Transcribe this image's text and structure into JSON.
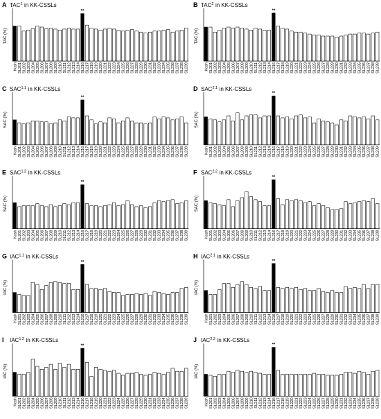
{
  "chart_data": [
    {
      "type": "bar",
      "panel_label": "A",
      "title": "TAC",
      "title_sup": "1",
      "title_suffix": "in KK-CSSLs",
      "ylabel": "TAC (%)",
      "annotation": "**",
      "annotation_index": 15,
      "color": "#ffffff",
      "highlight": [
        0,
        15
      ],
      "highlight_color": "#000000",
      "ylim": [
        0,
        100
      ],
      "categories": [
        "Kosh",
        "SL201",
        "SL202",
        "SL203",
        "SL204",
        "SL205",
        "SL206",
        "SL207",
        "SL208",
        "SL209",
        "SL210",
        "SL211",
        "SL212",
        "SL213",
        "SL214",
        "SL216",
        "SL217",
        "SL218",
        "SL219",
        "SL220",
        "SL221",
        "SL222",
        "SL223",
        "SL224",
        "SL225",
        "SL226",
        "SL227",
        "SL228",
        "SL229",
        "SL230",
        "SL231",
        "SL232",
        "SL233",
        "SL234",
        "SL235",
        "SL236",
        "SL237",
        "SL238",
        "SL239"
      ],
      "values": [
        70,
        70,
        60,
        62,
        65,
        70,
        68,
        65,
        66,
        64,
        62,
        64,
        66,
        64,
        64,
        95,
        72,
        66,
        64,
        62,
        64,
        66,
        64,
        62,
        60,
        62,
        63,
        60,
        58,
        56,
        58,
        60,
        60,
        62,
        63,
        58,
        60,
        62,
        66
      ]
    },
    {
      "type": "bar",
      "panel_label": "B",
      "title": "TAC",
      "title_sup": "2",
      "title_suffix": "in KK-CSSLs",
      "ylabel": "TAC (%)",
      "annotation": "**",
      "annotation_index": 15,
      "color": "#ffffff",
      "highlight": [
        0,
        15
      ],
      "highlight_color": "#000000",
      "ylim": [
        0,
        100
      ],
      "categories": [
        "Kosh",
        "SL201",
        "SL202",
        "SL203",
        "SL204",
        "SL205",
        "SL206",
        "SL207",
        "SL208",
        "SL209",
        "SL210",
        "SL211",
        "SL212",
        "SL213",
        "SL214",
        "SL216",
        "SL217",
        "SL218",
        "SL219",
        "SL220",
        "SL221",
        "SL222",
        "SL223",
        "SL224",
        "SL225",
        "SL226",
        "SL227",
        "SL228",
        "SL229",
        "SL230",
        "SL231",
        "SL232",
        "SL233",
        "SL234",
        "SL235",
        "SL236",
        "SL237",
        "SL238",
        "SL239"
      ],
      "values": [
        68,
        68,
        58,
        62,
        66,
        68,
        66,
        68,
        66,
        64,
        62,
        66,
        64,
        62,
        62,
        96,
        70,
        66,
        64,
        60,
        58,
        58,
        56,
        54,
        52,
        52,
        50,
        50,
        50,
        48,
        50,
        52,
        54,
        54,
        56,
        56,
        54,
        56,
        58
      ]
    },
    {
      "type": "bar",
      "panel_label": "C",
      "title": "SAC",
      "title_sup": "1.1",
      "title_suffix": "in KK-CSSLs",
      "ylabel": "SAC (%)",
      "annotation": "**",
      "annotation_index": 15,
      "color": "#ffffff",
      "highlight": [
        0,
        15
      ],
      "highlight_color": "#000000",
      "ylim": [
        0,
        100
      ],
      "categories": [
        "Kosh",
        "SL201",
        "SL202",
        "SL203",
        "SL204",
        "SL205",
        "SL206",
        "SL207",
        "SL208",
        "SL209",
        "SL210",
        "SL211",
        "SL212",
        "SL213",
        "SL214",
        "SL216",
        "SL217",
        "SL218",
        "SL219",
        "SL220",
        "SL221",
        "SL222",
        "SL223",
        "SL224",
        "SL225",
        "SL226",
        "SL227",
        "SL228",
        "SL229",
        "SL230",
        "SL231",
        "SL232",
        "SL233",
        "SL234",
        "SL235",
        "SL236",
        "SL237",
        "SL238",
        "SL239"
      ],
      "values": [
        50,
        44,
        42,
        44,
        48,
        48,
        46,
        46,
        42,
        44,
        50,
        48,
        56,
        54,
        54,
        90,
        58,
        50,
        42,
        46,
        44,
        54,
        52,
        44,
        48,
        54,
        48,
        44,
        44,
        42,
        44,
        56,
        52,
        56,
        54,
        50,
        52,
        56,
        44
      ]
    },
    {
      "type": "bar",
      "panel_label": "D",
      "title": "SAC",
      "title_sup": "2.1",
      "title_suffix": "in KK-CSSLs",
      "ylabel": "SAC (%)",
      "annotation": "**",
      "annotation_index": 15,
      "color": "#ffffff",
      "highlight": [
        0,
        15
      ],
      "highlight_color": "#000000",
      "ylim": [
        0,
        100
      ],
      "categories": [
        "Kosh",
        "SL201",
        "SL202",
        "SL203",
        "SL204",
        "SL205",
        "SL206",
        "SL207",
        "SL208",
        "SL209",
        "SL210",
        "SL211",
        "SL212",
        "SL213",
        "SL214",
        "SL216",
        "SL217",
        "SL218",
        "SL219",
        "SL220",
        "SL221",
        "SL222",
        "SL223",
        "SL224",
        "SL225",
        "SL226",
        "SL227",
        "SL228",
        "SL229",
        "SL230",
        "SL231",
        "SL232",
        "SL233",
        "SL234",
        "SL235",
        "SL236",
        "SL237",
        "SL238",
        "SL239"
      ],
      "values": [
        56,
        52,
        50,
        46,
        50,
        58,
        48,
        64,
        50,
        58,
        60,
        60,
        54,
        58,
        58,
        98,
        58,
        54,
        56,
        52,
        58,
        60,
        54,
        56,
        44,
        52,
        48,
        46,
        44,
        40,
        50,
        48,
        58,
        56,
        54,
        56,
        52,
        58,
        50
      ]
    },
    {
      "type": "bar",
      "panel_label": "E",
      "title": "SAC",
      "title_sup": "1.2",
      "title_suffix": "in KK-CSSLs",
      "ylabel": "SAC (%)",
      "annotation": "**",
      "annotation_index": 15,
      "color": "#ffffff",
      "highlight": [
        0,
        15
      ],
      "highlight_color": "#000000",
      "ylim": [
        0,
        100
      ],
      "categories": [
        "Kosh",
        "SL201",
        "SL202",
        "SL203",
        "SL204",
        "SL205",
        "SL206",
        "SL207",
        "SL208",
        "SL209",
        "SL210",
        "SL211",
        "SL212",
        "SL213",
        "SL214",
        "SL216",
        "SL217",
        "SL218",
        "SL219",
        "SL220",
        "SL221",
        "SL222",
        "SL223",
        "SL224",
        "SL225",
        "SL226",
        "SL227",
        "SL228",
        "SL229",
        "SL230",
        "SL231",
        "SL232",
        "SL233",
        "SL234",
        "SL235",
        "SL236",
        "SL237",
        "SL238",
        "SL239"
      ],
      "values": [
        52,
        44,
        46,
        46,
        46,
        50,
        46,
        44,
        48,
        44,
        46,
        50,
        48,
        52,
        52,
        88,
        50,
        46,
        46,
        44,
        46,
        48,
        52,
        46,
        48,
        56,
        48,
        44,
        46,
        42,
        44,
        52,
        56,
        54,
        56,
        58,
        50,
        52,
        56
      ]
    },
    {
      "type": "bar",
      "panel_label": "F",
      "title": "SAC",
      "title_sup": "2.2",
      "title_suffix": "in KK-CSSLs",
      "ylabel": "SAC (%)",
      "annotation": "**",
      "annotation_index": 15,
      "color": "#ffffff",
      "highlight": [
        0,
        15
      ],
      "highlight_color": "#000000",
      "ylim": [
        0,
        100
      ],
      "categories": [
        "Kosh",
        "SL201",
        "SL202",
        "SL203",
        "SL204",
        "SL205",
        "SL206",
        "SL207",
        "SL208",
        "SL209",
        "SL210",
        "SL211",
        "SL212",
        "SL213",
        "SL214",
        "SL216",
        "SL217",
        "SL218",
        "SL219",
        "SL220",
        "SL221",
        "SL222",
        "SL223",
        "SL224",
        "SL225",
        "SL226",
        "SL227",
        "SL228",
        "SL229",
        "SL230",
        "SL231",
        "SL232",
        "SL233",
        "SL234",
        "SL235",
        "SL236",
        "SL237",
        "SL238",
        "SL239"
      ],
      "values": [
        56,
        52,
        50,
        48,
        46,
        58,
        44,
        56,
        62,
        74,
        64,
        58,
        54,
        46,
        46,
        98,
        60,
        48,
        58,
        56,
        58,
        56,
        52,
        54,
        46,
        50,
        46,
        42,
        38,
        38,
        40,
        54,
        50,
        52,
        54,
        56,
        54,
        60,
        50
      ]
    },
    {
      "type": "bar",
      "panel_label": "G",
      "title": "IAC",
      "title_sup": "1.1",
      "title_suffix": "in KK-CSSLs",
      "ylabel": "IAC (%)",
      "annotation": "**",
      "annotation_index": 15,
      "color": "#ffffff",
      "highlight": [
        0,
        15
      ],
      "highlight_color": "#000000",
      "ylim": [
        0,
        100
      ],
      "categories": [
        "Kosh",
        "SL201",
        "SL202",
        "SL203",
        "SL204",
        "SL205",
        "SL206",
        "SL207",
        "SL208",
        "SL209",
        "SL210",
        "SL211",
        "SL212",
        "SL213",
        "SL214",
        "SL216",
        "SL217",
        "SL218",
        "SL219",
        "SL220",
        "SL221",
        "SL222",
        "SL223",
        "SL224",
        "SL225",
        "SL226",
        "SL227",
        "SL228",
        "SL229",
        "SL230",
        "SL231",
        "SL232",
        "SL233",
        "SL234",
        "SL235",
        "SL236",
        "SL237",
        "SL238",
        "SL239"
      ],
      "values": [
        40,
        36,
        34,
        34,
        60,
        56,
        46,
        54,
        60,
        62,
        60,
        58,
        58,
        46,
        46,
        96,
        56,
        48,
        48,
        46,
        48,
        42,
        40,
        40,
        34,
        36,
        36,
        38,
        36,
        38,
        34,
        42,
        40,
        38,
        36,
        40,
        40,
        48,
        50
      ]
    },
    {
      "type": "bar",
      "panel_label": "H",
      "title": "IAC",
      "title_sup": "2.1",
      "title_suffix": "in KK-CSSLs",
      "ylabel": "IAC (%)",
      "annotation": "**",
      "annotation_index": 15,
      "color": "#ffffff",
      "highlight": [
        0,
        15
      ],
      "highlight_color": "#000000",
      "ylim": [
        0,
        100
      ],
      "categories": [
        "Kosh",
        "SL201",
        "SL202",
        "SL203",
        "SL204",
        "SL205",
        "SL206",
        "SL207",
        "SL208",
        "SL209",
        "SL210",
        "SL211",
        "SL212",
        "SL213",
        "SL214",
        "SL216",
        "SL217",
        "SL218",
        "SL219",
        "SL220",
        "SL221",
        "SL222",
        "SL223",
        "SL224",
        "SL225",
        "SL226",
        "SL227",
        "SL228",
        "SL229",
        "SL230",
        "SL231",
        "SL232",
        "SL233",
        "SL234",
        "SL235",
        "SL236",
        "SL237",
        "SL238",
        "SL239"
      ],
      "values": [
        44,
        36,
        36,
        46,
        58,
        58,
        50,
        56,
        62,
        56,
        50,
        48,
        52,
        44,
        44,
        98,
        50,
        48,
        50,
        48,
        50,
        46,
        48,
        44,
        44,
        48,
        42,
        40,
        44,
        40,
        40,
        52,
        48,
        50,
        48,
        56,
        48,
        56,
        56
      ]
    },
    {
      "type": "bar",
      "panel_label": "I",
      "title": "IAC",
      "title_sup": "1.2",
      "title_suffix": "in KK-CSSLs",
      "ylabel": "IAC (%)",
      "annotation": "**",
      "annotation_index": 15,
      "color": "#ffffff",
      "highlight": [
        0,
        15
      ],
      "highlight_color": "#000000",
      "ylim": [
        0,
        100
      ],
      "categories": [
        "Kosh",
        "SL201",
        "SL202",
        "SL203",
        "SL204",
        "SL205",
        "SL206",
        "SL207",
        "SL208",
        "SL209",
        "SL210",
        "SL211",
        "SL212",
        "SL213",
        "SL214",
        "SL216",
        "SL217",
        "SL218",
        "SL219",
        "SL220",
        "SL221",
        "SL222",
        "SL223",
        "SL224",
        "SL225",
        "SL226",
        "SL227",
        "SL228",
        "SL229",
        "SL230",
        "SL231",
        "SL232",
        "SL233",
        "SL234",
        "SL235",
        "SL236",
        "SL237",
        "SL238",
        "SL239"
      ],
      "values": [
        48,
        44,
        44,
        48,
        74,
        60,
        54,
        58,
        64,
        54,
        66,
        58,
        64,
        54,
        54,
        96,
        68,
        40,
        58,
        54,
        52,
        50,
        52,
        46,
        42,
        46,
        46,
        48,
        44,
        42,
        44,
        48,
        46,
        44,
        48,
        56,
        50,
        50,
        56
      ]
    },
    {
      "type": "bar",
      "panel_label": "J",
      "title": "IAC",
      "title_sup": "2.2",
      "title_suffix": "in KK-CSSLs",
      "ylabel": "IAC (%)",
      "annotation": "**",
      "annotation_index": 15,
      "color": "#ffffff",
      "highlight": [
        0,
        15
      ],
      "highlight_color": "#000000",
      "ylim": [
        0,
        100
      ],
      "categories": [
        "Kosh",
        "SL201",
        "SL202",
        "SL203",
        "SL204",
        "SL205",
        "SL206",
        "SL207",
        "SL208",
        "SL209",
        "SL210",
        "SL211",
        "SL212",
        "SL213",
        "SL214",
        "SL216",
        "SL217",
        "SL218",
        "SL219",
        "SL220",
        "SL221",
        "SL222",
        "SL223",
        "SL224",
        "SL225",
        "SL226",
        "SL227",
        "SL228",
        "SL229",
        "SL230",
        "SL231",
        "SL232",
        "SL233",
        "SL234",
        "SL235",
        "SL236",
        "SL237",
        "SL238",
        "SL239"
      ],
      "values": [
        44,
        42,
        40,
        44,
        44,
        50,
        48,
        52,
        50,
        48,
        50,
        48,
        46,
        44,
        44,
        98,
        52,
        44,
        44,
        44,
        44,
        44,
        44,
        44,
        46,
        44,
        44,
        42,
        42,
        42,
        44,
        48,
        48,
        46,
        50,
        48,
        44,
        50,
        52
      ]
    }
  ]
}
